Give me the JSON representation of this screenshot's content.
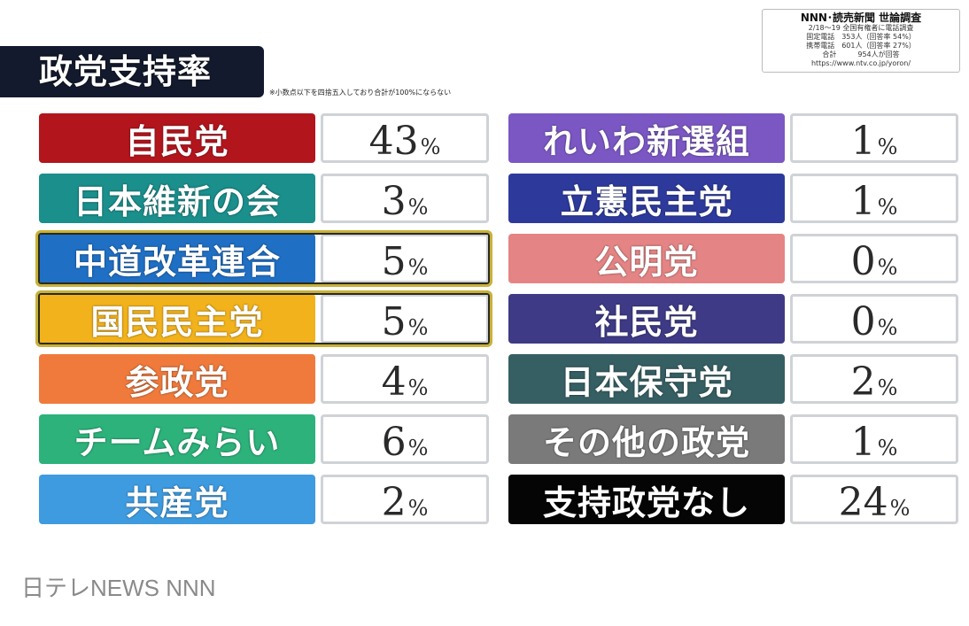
{
  "title": "政党支持率",
  "note": "※小数点以下を四捨五入しており合計が100%にならない",
  "source": {
    "title": "NNN･読売新聞 世論調査",
    "lines": [
      "2/18〜19 全国有権者に電話調査",
      "固定電話　353人（回答率 54%）",
      "携帯電話　601人（回答率 27%）",
      "合計　　　954人が回答",
      "https://www.ntv.co.jp/yoron/"
    ]
  },
  "unit": "%",
  "footer": "日テレNEWS NNN",
  "chart_data": {
    "type": "table",
    "title": "政党支持率",
    "unit": "%",
    "parties": [
      {
        "name": "自民党",
        "value": 43,
        "color": "#b3151d"
      },
      {
        "name": "日本維新の会",
        "value": 3,
        "color": "#1a8f8c"
      },
      {
        "name": "中道改革連合",
        "value": 5,
        "color": "#1f6fc4",
        "highlight": true
      },
      {
        "name": "国民民主党",
        "value": 5,
        "color": "#f2b21c",
        "highlight": true
      },
      {
        "name": "参政党",
        "value": 4,
        "color": "#f07a3c"
      },
      {
        "name": "チームみらい",
        "value": 6,
        "color": "#2cb27a"
      },
      {
        "name": "共産党",
        "value": 2,
        "color": "#3e9be0"
      },
      {
        "name": "れいわ新選組",
        "value": 1,
        "color": "#7b57c4"
      },
      {
        "name": "立憲民主党",
        "value": 1,
        "color": "#2d3a9c"
      },
      {
        "name": "公明党",
        "value": 0,
        "color": "#e58484"
      },
      {
        "name": "社民党",
        "value": 0,
        "color": "#3e3a86"
      },
      {
        "name": "日本保守党",
        "value": 2,
        "color": "#365f63"
      },
      {
        "name": "その他の政党",
        "value": 1,
        "color": "#7a7a7a"
      },
      {
        "name": "支持政党なし",
        "value": 24,
        "color": "#050505"
      }
    ]
  }
}
